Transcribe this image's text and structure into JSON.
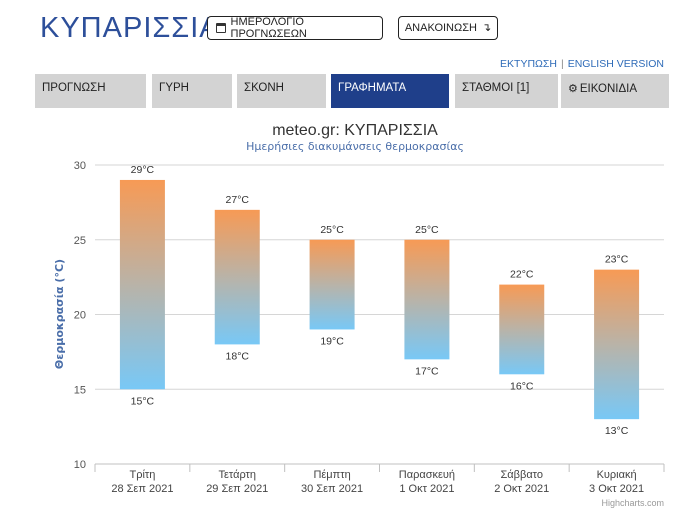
{
  "header": {
    "site_title": "ΚΥΠΑΡΙΣΣΙΑ",
    "calendar_button": "ΗΜΕΡΟΛΟΓΙΟ ΠΡΟΓΝΩΣΕΩΝ",
    "announce_button": "ΑΝΑΚΟΙΝΩΣΗ",
    "print_link": "ΕΚΤΥΠΩΣΗ",
    "english_link": "ENGLISH VERSION"
  },
  "tabs": [
    {
      "label": "ΠΡΟΓΝΩΣΗ",
      "active": false
    },
    {
      "label": "ΓΥΡΗ",
      "active": false
    },
    {
      "label": "ΣΚΟΝΗ",
      "active": false
    },
    {
      "label": "ΓΡΑΦΗΜΑΤΑ",
      "active": true
    },
    {
      "label": "ΣΤΑΘΜΟΙ [1]",
      "active": false
    },
    {
      "label": "ΕΙΚΟΝΙΔΙΑ",
      "active": false
    }
  ],
  "colors": {
    "brand": "#2d4f9a",
    "active_tab": "#1f3f8a",
    "bar_top": "#f79a55",
    "bar_bottom": "#78c8f6"
  },
  "chart_data": {
    "type": "columnrange",
    "title": "meteo.gr: ΚΥΠΑΡΙΣΣΙΑ",
    "subtitle": "Ημερήσιες διακυμάνσεις θερμοκρασίας",
    "ylabel": "Θερμοκρασία (°C)",
    "ylim": [
      10,
      30
    ],
    "yticks": [
      10,
      15,
      20,
      25,
      30
    ],
    "grid": true,
    "unit": "°C",
    "categories": [
      [
        "Τρίτη",
        "28 Σεπ 2021"
      ],
      [
        "Τετάρτη",
        "29 Σεπ 2021"
      ],
      [
        "Πέμπτη",
        "30 Σεπ 2021"
      ],
      [
        "Παρασκευή",
        "1 Οκτ 2021"
      ],
      [
        "Σάββατο",
        "2 Οκτ 2021"
      ],
      [
        "Κυριακή",
        "3 Οκτ 2021"
      ]
    ],
    "low": [
      15,
      18,
      19,
      17,
      16,
      13
    ],
    "high": [
      29,
      27,
      25,
      25,
      22,
      23
    ],
    "credits": "Highcharts.com"
  }
}
